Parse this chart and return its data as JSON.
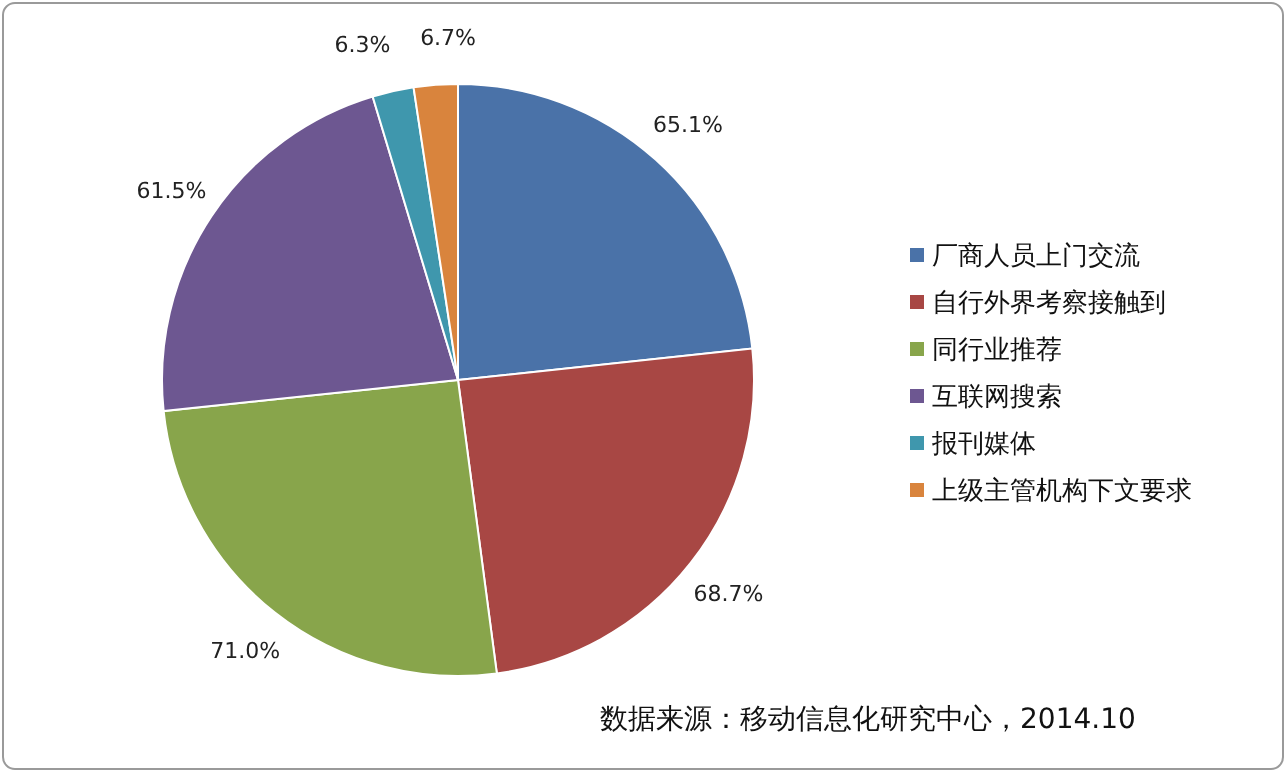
{
  "chart_data": {
    "type": "pie",
    "categories": [
      "厂商人员上门交流",
      "自行外界考察接触到",
      "同行业推荐",
      "互联网搜索",
      "报刊媒体",
      "上级主管机构下文要求"
    ],
    "values": [
      65.1,
      68.7,
      71.0,
      61.5,
      6.3,
      6.7
    ],
    "colors": [
      "#4a72a8",
      "#a84744",
      "#88a54b",
      "#6d5791",
      "#3f97ad",
      "#d9843d"
    ],
    "value_labels": [
      "65.1%",
      "68.7%",
      "71.0%",
      "61.5%",
      "6.3%",
      "6.7%"
    ],
    "legend": "right",
    "annotations": [
      "数据来源：移动信息化研究中心，2014.10"
    ]
  }
}
